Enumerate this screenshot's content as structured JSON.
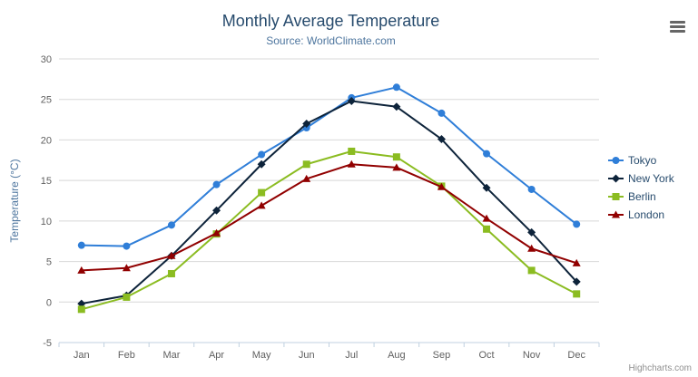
{
  "header": {
    "title": "Monthly Average Temperature",
    "subtitle": "Source: WorldClimate.com"
  },
  "toolbar": {
    "context_menu_icon": "hamburger-menu-icon"
  },
  "credits": {
    "label": "Highcharts.com"
  },
  "chart_data": {
    "type": "line",
    "title": "Monthly Average Temperature",
    "subtitle": "Source: WorldClimate.com",
    "categories": [
      "Jan",
      "Feb",
      "Mar",
      "Apr",
      "May",
      "Jun",
      "Jul",
      "Aug",
      "Sep",
      "Oct",
      "Nov",
      "Dec"
    ],
    "series": [
      {
        "name": "Tokyo",
        "color": "#2f7ed8",
        "marker": "circle",
        "values": [
          7.0,
          6.9,
          9.5,
          14.5,
          18.2,
          21.5,
          25.2,
          26.5,
          23.3,
          18.3,
          13.9,
          9.6
        ]
      },
      {
        "name": "New York",
        "color": "#0d233a",
        "marker": "diamond",
        "values": [
          -0.2,
          0.8,
          5.7,
          11.3,
          17.0,
          22.0,
          24.8,
          24.1,
          20.1,
          14.1,
          8.6,
          2.5
        ]
      },
      {
        "name": "Berlin",
        "color": "#8bbc21",
        "marker": "square",
        "values": [
          -0.9,
          0.6,
          3.5,
          8.4,
          13.5,
          17.0,
          18.6,
          17.9,
          14.3,
          9.0,
          3.9,
          1.0
        ]
      },
      {
        "name": "London",
        "color": "#910000",
        "marker": "triangle",
        "values": [
          3.9,
          4.2,
          5.7,
          8.5,
          11.9,
          15.2,
          17.0,
          16.6,
          14.2,
          10.3,
          6.6,
          4.8
        ]
      }
    ],
    "xlabel": "",
    "ylabel": "Temperature (°C)",
    "ylim": [
      -5,
      30
    ],
    "ytick_interval": 5,
    "grid": true,
    "legend_position": "right",
    "colors": {
      "grid_line": "#D8D8D8",
      "axis_line": "#C0D0E0",
      "axis_label": "#606060",
      "axis_title": "#4d759e",
      "title_text": "#274b6d",
      "subtitle_text": "#4d759e",
      "legend_text": "#274b6d",
      "credits_text": "#909090"
    }
  }
}
